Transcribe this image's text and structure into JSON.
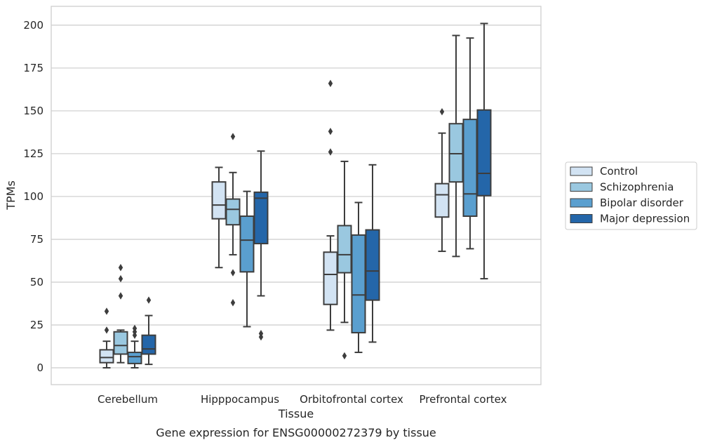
{
  "chart_data": {
    "type": "boxplot",
    "title": "Gene expression for ENSG00000272379 by tissue",
    "xlabel": "Tissue",
    "ylabel": "TPMs",
    "ylim": [
      -10,
      210
    ],
    "yticks": [
      "0",
      "25",
      "50",
      "75",
      "100",
      "125",
      "150",
      "175",
      "200"
    ],
    "grid": "horizontal",
    "legend_position": "right",
    "categories": [
      "Cerebellum",
      "Hipppocampus",
      "Orbitofrontal cortex",
      "Prefrontal cortex"
    ],
    "series": [
      {
        "name": "Control",
        "color": "#d2e3f3",
        "boxes": [
          {
            "whislo": 0,
            "q1": 3,
            "med": 6,
            "q3": 10.5,
            "whishi": 15.5,
            "fliers": [
              22,
              33
            ]
          },
          {
            "whislo": 58.5,
            "q1": 87,
            "med": 95,
            "q3": 108.5,
            "whishi": 117,
            "fliers": []
          },
          {
            "whislo": 22,
            "q1": 37,
            "med": 54.5,
            "q3": 67.5,
            "whishi": 77,
            "fliers": [
              126,
              138,
              166
            ]
          },
          {
            "whislo": 68,
            "q1": 88,
            "med": 101,
            "q3": 107.5,
            "whishi": 137,
            "fliers": [
              149.5
            ]
          }
        ]
      },
      {
        "name": "Schizophrenia",
        "color": "#9ac8e0",
        "boxes": [
          {
            "whislo": 3,
            "q1": 8,
            "med": 13,
            "q3": 21,
            "whishi": 22,
            "fliers": [
              42,
              52,
              58.5
            ]
          },
          {
            "whislo": 66,
            "q1": 83.5,
            "med": 92.5,
            "q3": 98.5,
            "whishi": 114,
            "fliers": [
              38,
              55.5,
              135
            ]
          },
          {
            "whislo": 26.5,
            "q1": 55.5,
            "med": 66,
            "q3": 83,
            "whishi": 120.5,
            "fliers": [
              7
            ]
          },
          {
            "whislo": 65,
            "q1": 108.5,
            "med": 125,
            "q3": 142.5,
            "whishi": 194,
            "fliers": []
          }
        ]
      },
      {
        "name": "Bipolar disorder",
        "color": "#5a9fcf",
        "boxes": [
          {
            "whislo": 0,
            "q1": 2.5,
            "med": 6.5,
            "q3": 9,
            "whishi": 15.5,
            "fliers": [
              19,
              21,
              23
            ]
          },
          {
            "whislo": 24,
            "q1": 56,
            "med": 74.5,
            "q3": 88.5,
            "whishi": 103,
            "fliers": []
          },
          {
            "whislo": 9,
            "q1": 20.5,
            "med": 42.5,
            "q3": 77.5,
            "whishi": 96.5,
            "fliers": []
          },
          {
            "whislo": 69.5,
            "q1": 88.5,
            "med": 101.5,
            "q3": 145,
            "whishi": 192.5,
            "fliers": []
          }
        ]
      },
      {
        "name": "Major depression",
        "color": "#2466a9",
        "boxes": [
          {
            "whislo": 2,
            "q1": 8,
            "med": 11,
            "q3": 19,
            "whishi": 30.5,
            "fliers": [
              39.5
            ]
          },
          {
            "whislo": 42,
            "q1": 72.5,
            "med": 99,
            "q3": 102.5,
            "whishi": 126.5,
            "fliers": [
              18,
              20
            ]
          },
          {
            "whislo": 15,
            "q1": 39.5,
            "med": 56.5,
            "q3": 80.5,
            "whishi": 118.5,
            "fliers": []
          },
          {
            "whislo": 52,
            "q1": 100.5,
            "med": 113.5,
            "q3": 150.5,
            "whishi": 201,
            "fliers": []
          }
        ]
      }
    ]
  }
}
